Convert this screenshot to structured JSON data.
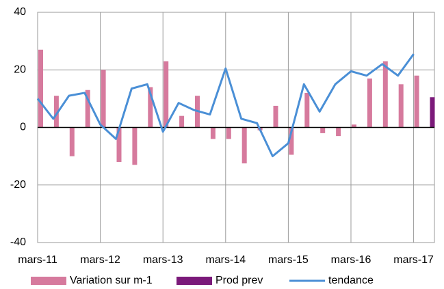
{
  "chart_data": {
    "type": "bar",
    "categories": [
      "mars-11",
      null,
      null,
      null,
      "mars-12",
      null,
      null,
      null,
      "mars-13",
      null,
      null,
      null,
      "mars-14",
      null,
      null,
      null,
      "mars-15",
      null,
      null,
      null,
      "mars-16",
      null,
      null,
      null,
      "mars-17",
      null
    ],
    "series": [
      {
        "name": "Variation sur m-1",
        "type": "bar",
        "color": "#d67a9d",
        "values": [
          27,
          11,
          -10,
          13,
          20,
          -12,
          -13,
          14,
          23,
          4,
          11,
          -4,
          -4,
          -12.5,
          -1,
          7.5,
          -9.5,
          12,
          -2,
          -3,
          1,
          17,
          23,
          15,
          18,
          null
        ]
      },
      {
        "name": "Prod prev",
        "type": "bar",
        "color": "#7b1a7a",
        "values": [
          null,
          null,
          null,
          null,
          null,
          null,
          null,
          null,
          null,
          null,
          null,
          null,
          null,
          null,
          null,
          null,
          null,
          null,
          null,
          null,
          null,
          null,
          null,
          null,
          null,
          10.5
        ]
      },
      {
        "name": "tendance",
        "type": "line",
        "color": "#4a8fd6",
        "values": [
          10,
          3,
          11,
          12,
          1,
          -4,
          13.5,
          15,
          -1.5,
          8.5,
          6,
          4.5,
          20.5,
          3,
          1.5,
          -10,
          -5.5,
          15,
          5.5,
          15,
          19.5,
          18,
          22,
          18,
          25.5,
          null
        ]
      }
    ],
    "ylim": [
      -40,
      40
    ],
    "yticks": [
      -40,
      -20,
      0,
      20,
      40
    ],
    "grid": true,
    "legend": "bottom"
  }
}
